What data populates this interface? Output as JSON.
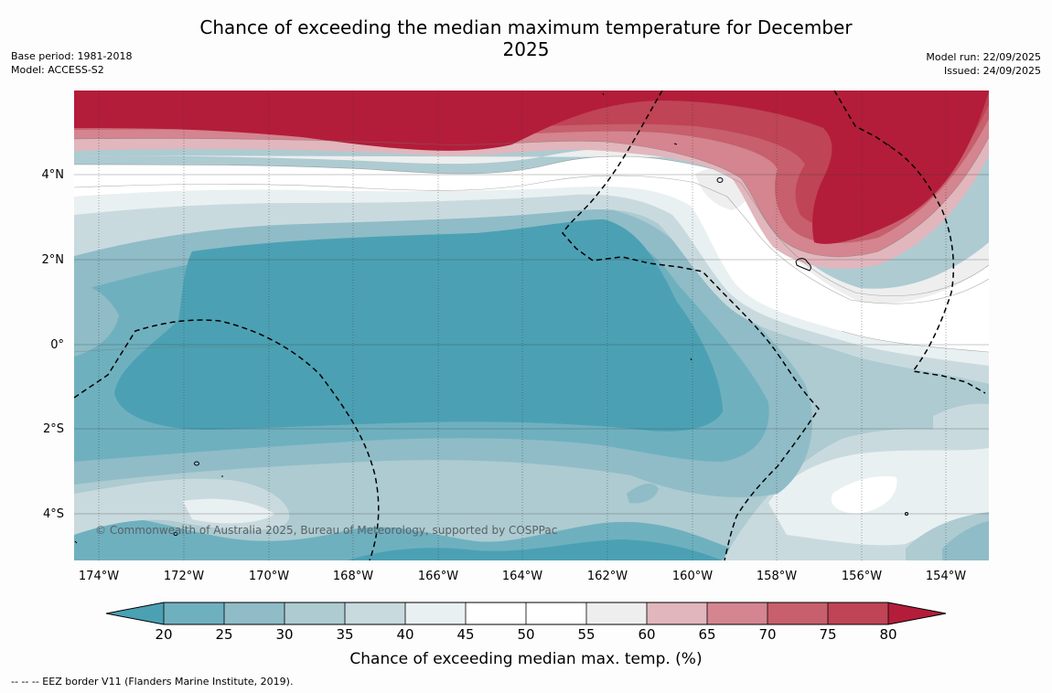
{
  "header": {
    "title": "Chance of exceeding the median maximum temperature for December 2025",
    "base_period": "Base period: 1981-2018",
    "model": "Model: ACCESS-S2",
    "model_run": "Model run: 22/09/2025",
    "issued": "Issued: 24/09/2025"
  },
  "map": {
    "lon_labels": [
      "174°W",
      "172°W",
      "170°W",
      "168°W",
      "166°W",
      "164°W",
      "162°W",
      "160°W",
      "158°W",
      "156°W",
      "154°W"
    ],
    "lat_labels": [
      "4°N",
      "2°N",
      "0°",
      "2°S",
      "4°S"
    ],
    "copyright": "© Commonwealth of Australia 2025, Bureau of Meteorology, supported by COSPPac"
  },
  "legend": {
    "ticks": [
      "20",
      "25",
      "30",
      "35",
      "40",
      "45",
      "50",
      "55",
      "60",
      "65",
      "70",
      "75",
      "80"
    ],
    "label": "Chance of exceeding median max. temp. (%)",
    "colors": [
      "#4ba1b3",
      "#6fb0bf",
      "#8fbcc7",
      "#adcbd1",
      "#c9dade",
      "#e9f0f2",
      "#ffffff",
      "#ffffff",
      "#eeeeee",
      "#e2b6bd",
      "#d4858f",
      "#c75f6c",
      "#bf4455",
      "#b31d3a"
    ]
  },
  "footer": {
    "note": "--  --  -- EEZ border V11 (Flanders Marine Institute, 2019)."
  }
}
